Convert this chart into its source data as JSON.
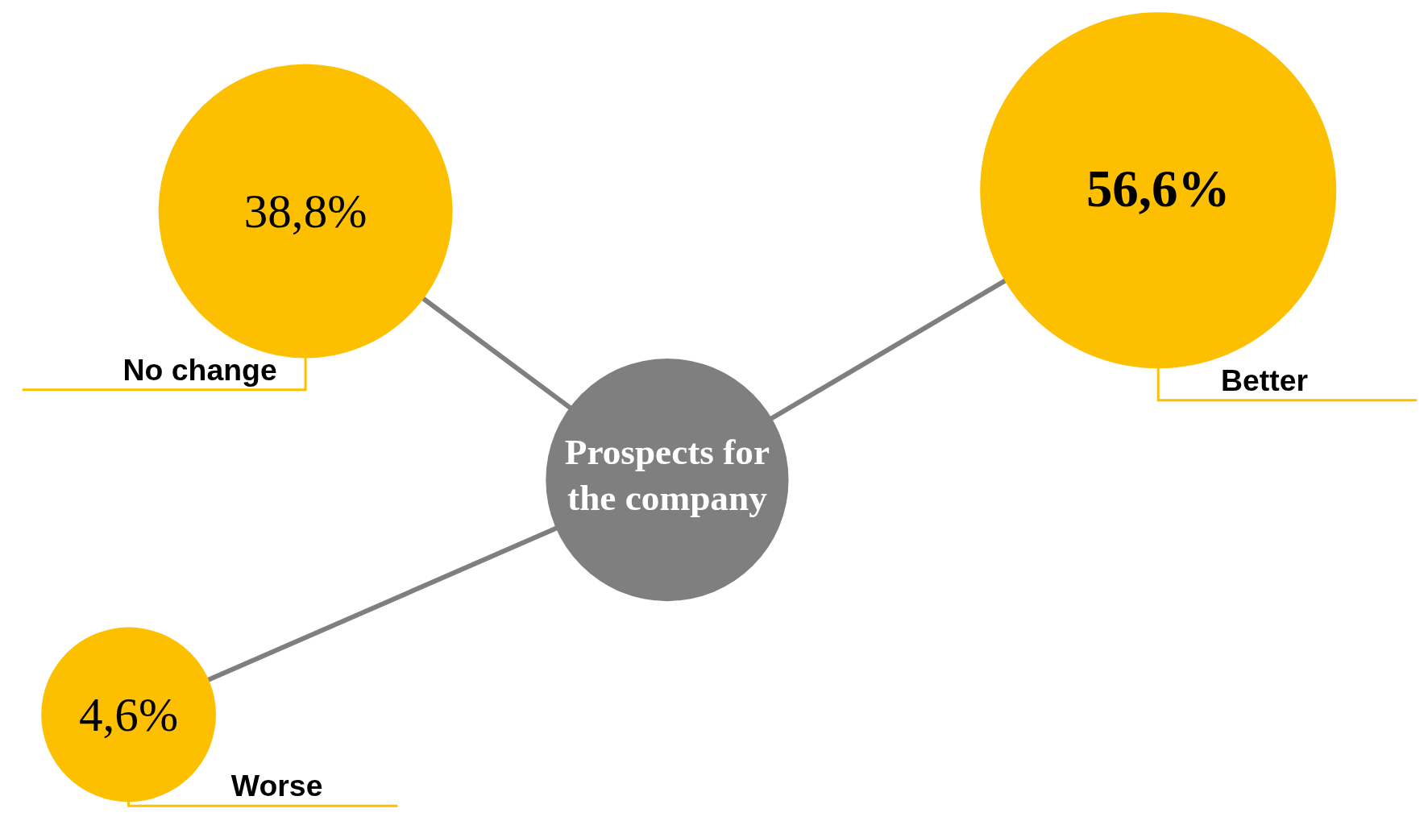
{
  "chart_data": {
    "type": "other",
    "title": "Prospects for the company",
    "categories": [
      "No change",
      "Better",
      "Worse"
    ],
    "values": [
      38.8,
      56.6,
      4.6
    ],
    "value_labels": [
      "38,8%",
      "56,6%",
      "4,6%"
    ],
    "colors": [
      "#fdc000",
      "#fdc000",
      "#fdc000"
    ]
  }
}
